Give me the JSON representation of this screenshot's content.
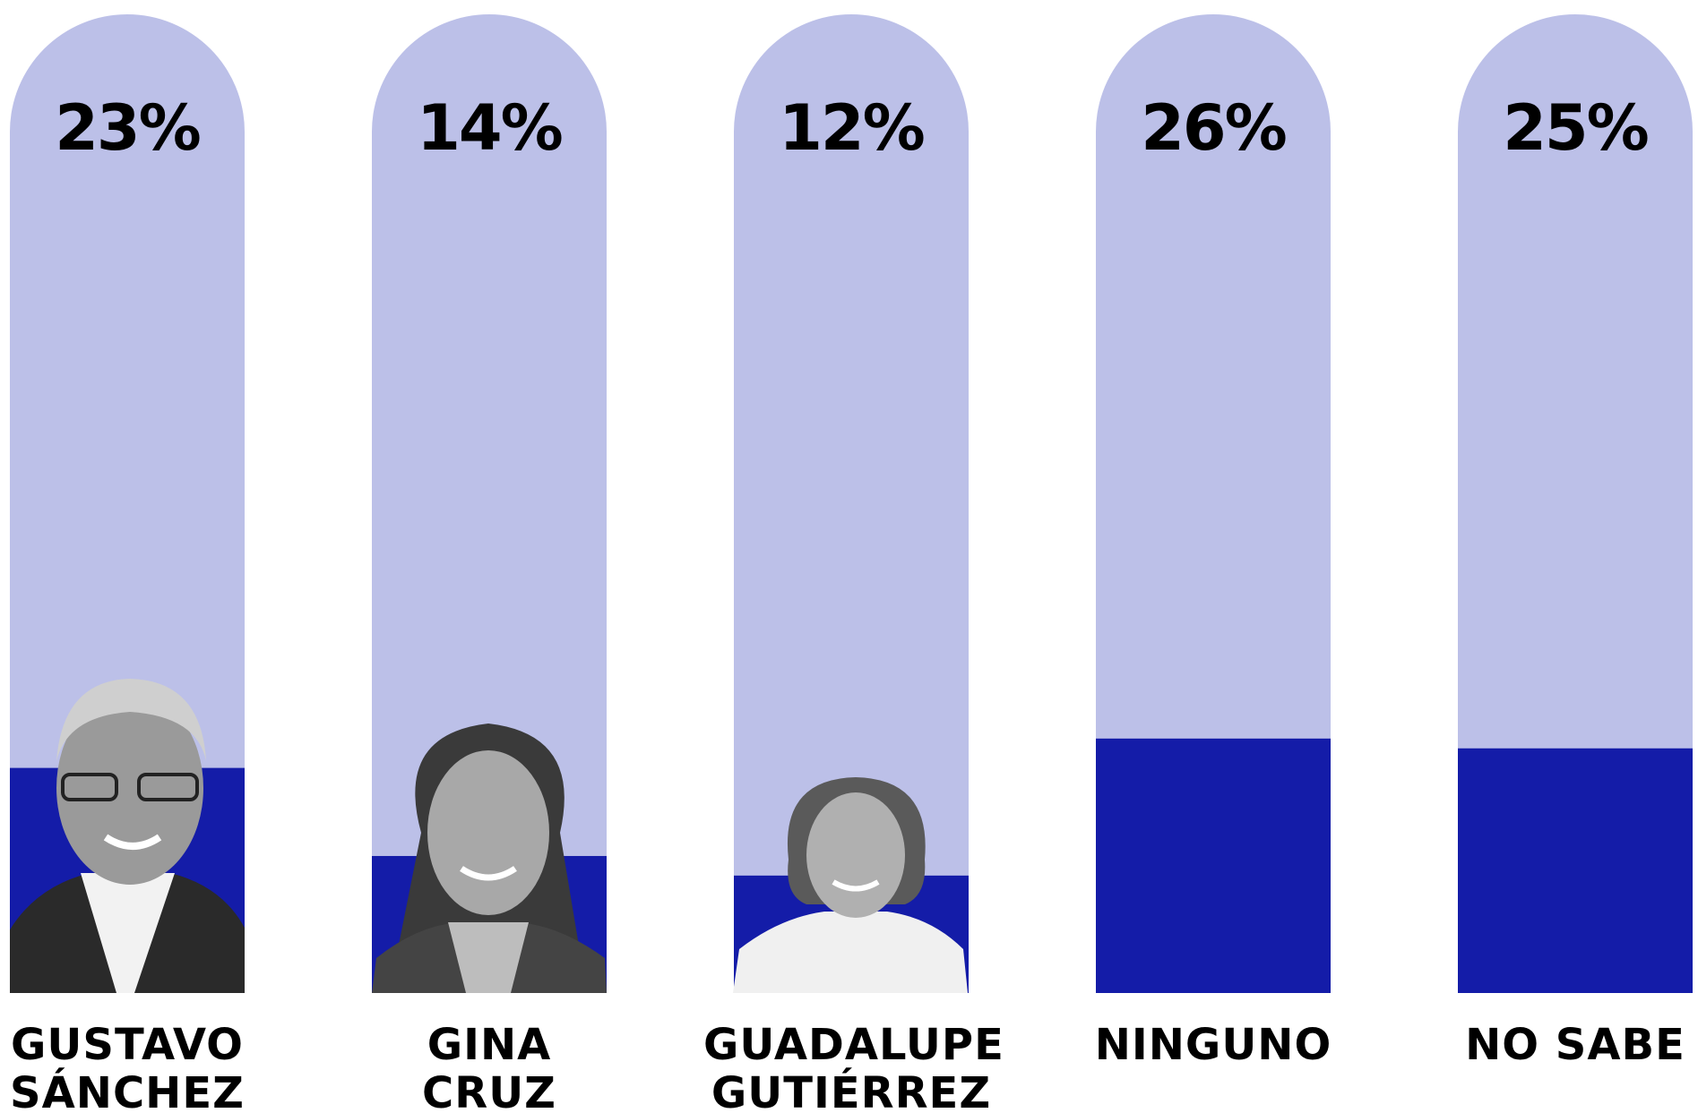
{
  "chart_data": {
    "type": "bar",
    "categories": [
      "GUSTAVO\nSÁNCHEZ",
      "GINA\nCRUZ",
      "GUADALUPE\nGUTIÉRREZ",
      "NINGUNO",
      "NO SABE"
    ],
    "values": [
      23,
      14,
      12,
      26,
      25
    ],
    "value_labels": [
      "23%",
      "14%",
      "12%",
      "26%",
      "25%"
    ],
    "color": "#141ca8",
    "track_color": "#bcc0e8",
    "ylim": [
      0,
      100
    ]
  }
}
